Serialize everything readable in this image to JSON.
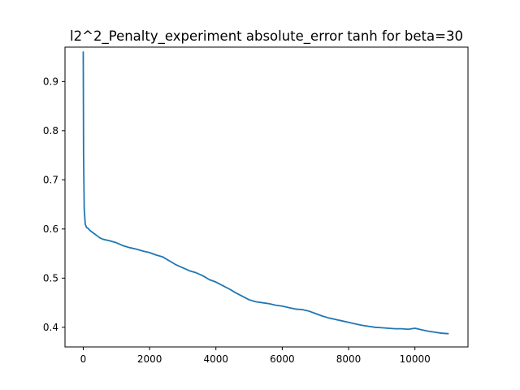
{
  "chart_data": {
    "type": "line",
    "title": "l2^2_Penalty_experiment absolute_error tanh for beta=30",
    "xlabel": "",
    "ylabel": "",
    "xlim": [
      -550,
      11600
    ],
    "ylim": [
      0.36,
      0.97
    ],
    "grid": false,
    "xticks": [
      {
        "value": 0,
        "label": "0"
      },
      {
        "value": 2000,
        "label": "2000"
      },
      {
        "value": 4000,
        "label": "4000"
      },
      {
        "value": 6000,
        "label": "6000"
      },
      {
        "value": 8000,
        "label": "8000"
      },
      {
        "value": 10000,
        "label": "10000"
      }
    ],
    "yticks": [
      {
        "value": 0.4,
        "label": "0.4"
      },
      {
        "value": 0.5,
        "label": "0.5"
      },
      {
        "value": 0.6,
        "label": "0.6"
      },
      {
        "value": 0.7,
        "label": "0.7"
      },
      {
        "value": 0.8,
        "label": "0.8"
      },
      {
        "value": 0.9,
        "label": "0.9"
      }
    ],
    "series": [
      {
        "color": "#1f77b4",
        "x": [
          0,
          10,
          30,
          60,
          100,
          150,
          200,
          300,
          400,
          500,
          600,
          800,
          1000,
          1200,
          1400,
          1600,
          1800,
          2000,
          2200,
          2400,
          2600,
          2800,
          3000,
          3200,
          3400,
          3600,
          3800,
          4000,
          4200,
          4400,
          4600,
          4800,
          5000,
          5200,
          5400,
          5600,
          5800,
          6000,
          6200,
          6400,
          6600,
          6800,
          7000,
          7200,
          7400,
          7600,
          7800,
          8000,
          8200,
          8400,
          8600,
          8800,
          9000,
          9200,
          9400,
          9600,
          9800,
          10000,
          10200,
          10400,
          10600,
          10800,
          11000
        ],
        "y": [
          0.96,
          0.75,
          0.64,
          0.61,
          0.603,
          0.601,
          0.597,
          0.592,
          0.587,
          0.582,
          0.579,
          0.576,
          0.572,
          0.566,
          0.562,
          0.559,
          0.555,
          0.552,
          0.547,
          0.543,
          0.535,
          0.527,
          0.521,
          0.515,
          0.511,
          0.505,
          0.497,
          0.492,
          0.485,
          0.478,
          0.47,
          0.463,
          0.456,
          0.452,
          0.45,
          0.448,
          0.445,
          0.443,
          0.44,
          0.437,
          0.436,
          0.433,
          0.428,
          0.423,
          0.419,
          0.416,
          0.413,
          0.41,
          0.407,
          0.404,
          0.402,
          0.4,
          0.399,
          0.398,
          0.397,
          0.397,
          0.396,
          0.398,
          0.395,
          0.392,
          0.39,
          0.388,
          0.387
        ]
      }
    ]
  }
}
